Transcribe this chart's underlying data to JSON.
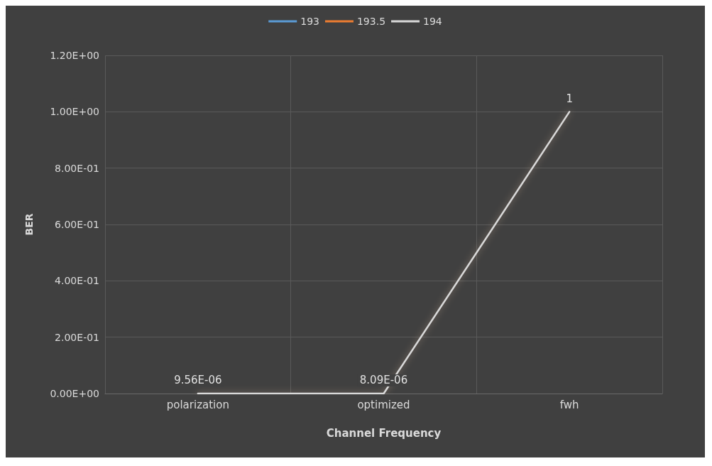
{
  "chart_data": {
    "type": "line",
    "xlabel": "Channel Frequency",
    "ylabel": "BER",
    "categories": [
      "polarization",
      "optimized",
      "fwh"
    ],
    "series": [
      {
        "name": "193",
        "color": "#5b9bd5",
        "values": [
          null,
          null,
          null
        ]
      },
      {
        "name": "193.5",
        "color": "#ed7d31",
        "values": [
          null,
          null,
          null
        ]
      },
      {
        "name": "194",
        "color": "#d9d9d9",
        "values": [
          9.56e-06,
          8.09e-06,
          1
        ],
        "value_labels": [
          "9.56E-06",
          "8.09E-06",
          "1"
        ]
      }
    ],
    "ylim": [
      0,
      1.2
    ],
    "yticks": [
      {
        "value": 0,
        "label": "0.00E+00"
      },
      {
        "value": 0.2,
        "label": "2.00E-01"
      },
      {
        "value": 0.4,
        "label": "4.00E-01"
      },
      {
        "value": 0.6,
        "label": "6.00E-01"
      },
      {
        "value": 0.8,
        "label": "8.00E-01"
      },
      {
        "value": 1,
        "label": "1.00E+00"
      },
      {
        "value": 1.2,
        "label": "1.20E+00"
      }
    ],
    "grid": true,
    "legend": "top",
    "marker": "none",
    "line_style": "solid"
  }
}
